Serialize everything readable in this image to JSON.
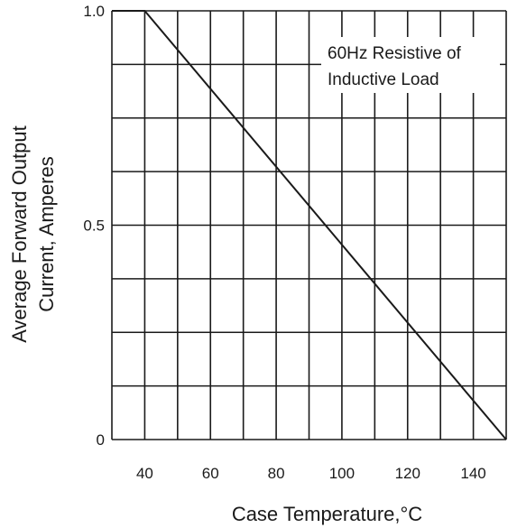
{
  "chart_data": {
    "type": "line",
    "title": "",
    "xlabel": "Case Temperature,°C",
    "ylabel_lines": [
      "Average Forward Output",
      "Current, Amperes"
    ],
    "xlim": [
      30,
      150
    ],
    "ylim": [
      0,
      1.0
    ],
    "x_ticks": [
      40,
      60,
      80,
      100,
      120,
      140
    ],
    "y_ticks": [
      {
        "value": 0,
        "label": "0"
      },
      {
        "value": 0.5,
        "label": "0.5"
      },
      {
        "value": 1.0,
        "label": "1.0"
      }
    ],
    "x_gridlines": [
      30,
      40,
      50,
      60,
      70,
      80,
      90,
      100,
      110,
      120,
      130,
      140,
      150
    ],
    "y_gridlines": [
      0,
      0.125,
      0.25,
      0.375,
      0.5,
      0.625,
      0.75,
      0.875,
      1.0
    ],
    "grid": true,
    "series": [
      {
        "x": [
          30,
          40,
          150
        ],
        "y": [
          1.0,
          1.0,
          0
        ]
      }
    ],
    "annotation": {
      "lines": [
        "60Hz Resistive of",
        "Inductive Load"
      ],
      "placement": "top-right"
    },
    "line_color": "#1a1a1a",
    "grid_color": "#1a1a1a"
  }
}
